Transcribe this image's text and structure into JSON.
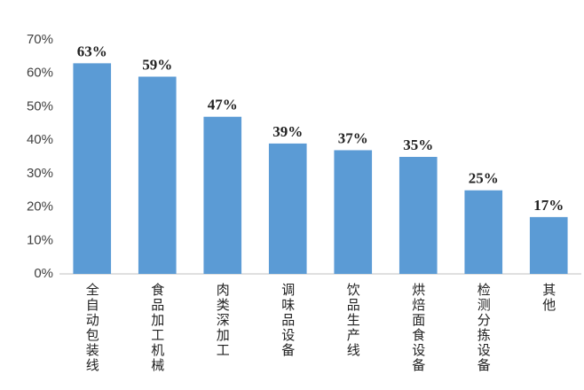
{
  "chart_data": {
    "type": "bar",
    "categories": [
      "全自动包装线",
      "食品加工机械",
      "肉类深加工",
      "调味品设备",
      "饮品生产线",
      "烘焙面食设备",
      "检测分拣设备",
      "其他"
    ],
    "values": [
      63,
      59,
      47,
      39,
      37,
      35,
      25,
      17
    ],
    "value_labels": [
      "63%",
      "59%",
      "47%",
      "39%",
      "37%",
      "35%",
      "25%",
      "17%"
    ],
    "color": "#5b9bd5",
    "ylim": [
      0,
      70
    ],
    "yticks": [
      {
        "value": 0,
        "label": "0%"
      },
      {
        "value": 10,
        "label": "10%"
      },
      {
        "value": 20,
        "label": "20%"
      },
      {
        "value": 30,
        "label": "30%"
      },
      {
        "value": 40,
        "label": "40%"
      },
      {
        "value": 50,
        "label": "50%"
      },
      {
        "value": 60,
        "label": "60%"
      },
      {
        "value": 70,
        "label": "70%"
      }
    ],
    "grid": false
  }
}
